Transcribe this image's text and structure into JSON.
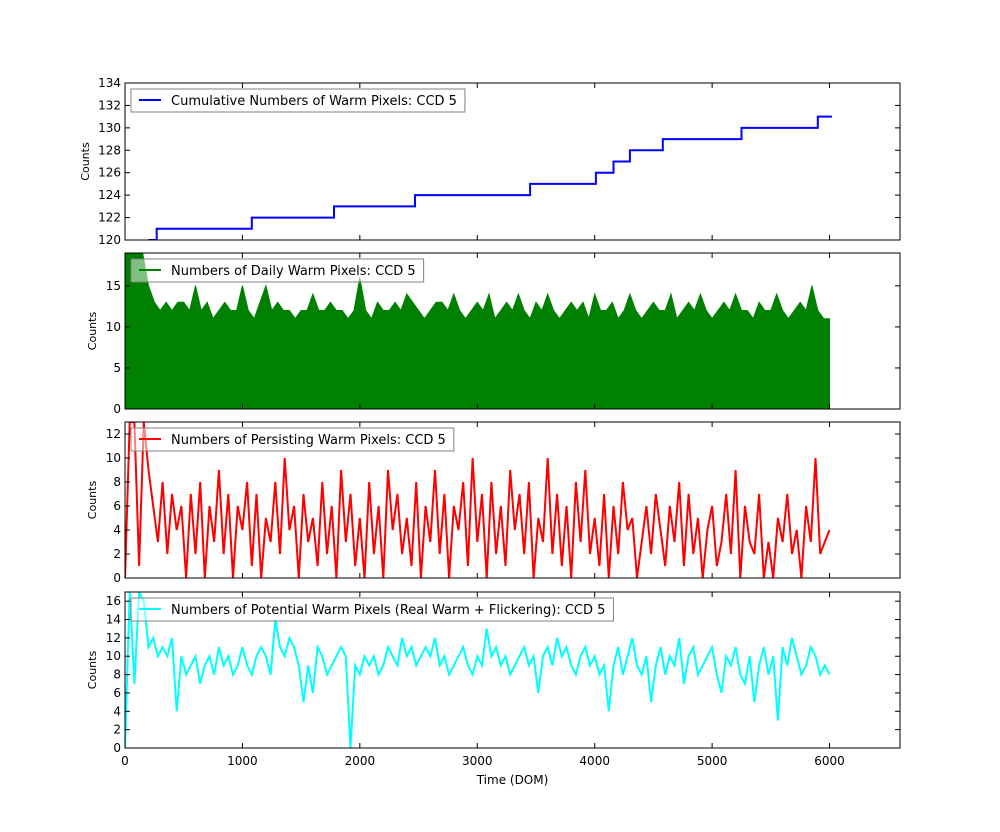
{
  "chart_data": [
    {
      "type": "line",
      "legend": "Cumulative Numbers of Warm Pixels: CCD 5",
      "legend_placement": "top-left",
      "ylabel": "Counts",
      "xlim": [
        0,
        6600
      ],
      "ylim": [
        120,
        134
      ],
      "yticks": [
        120,
        122,
        124,
        126,
        128,
        130,
        132,
        134
      ],
      "color": "#0000ff",
      "drawstyle": "steps",
      "points": [
        [
          200,
          120
        ],
        [
          270,
          121
        ],
        [
          1080,
          122
        ],
        [
          1780,
          123
        ],
        [
          2470,
          124
        ],
        [
          3450,
          125
        ],
        [
          4010,
          126
        ],
        [
          4160,
          127
        ],
        [
          4300,
          128
        ],
        [
          4580,
          129
        ],
        [
          5250,
          130
        ],
        [
          5900,
          131
        ],
        [
          6020,
          131
        ]
      ]
    },
    {
      "type": "area",
      "legend": "Numbers of Daily Warm Pixels: CCD 5",
      "legend_placement": "top-left",
      "ylabel": "Counts",
      "xlim": [
        0,
        6600
      ],
      "ylim": [
        0,
        19
      ],
      "yticks": [
        0,
        5,
        10,
        15
      ],
      "color": "#008000",
      "x_range": [
        0,
        6000
      ],
      "values": [
        19,
        19,
        19,
        19,
        15,
        13,
        12,
        13,
        12,
        13,
        13,
        12,
        15,
        12,
        13,
        11,
        12,
        13,
        12,
        12,
        15,
        12,
        11,
        13,
        15,
        12,
        13,
        12,
        12,
        11,
        12,
        12,
        14,
        12,
        12,
        13,
        12,
        12,
        11,
        12,
        16,
        12,
        11,
        13,
        12,
        12,
        13,
        12,
        14,
        13,
        12,
        11,
        12,
        13,
        13,
        12,
        14,
        12,
        11,
        12,
        13,
        12,
        14,
        11,
        12,
        13,
        12,
        14,
        12,
        11,
        13,
        12,
        14,
        12,
        11,
        12,
        13,
        12,
        13,
        11,
        14,
        12,
        12,
        13,
        11,
        12,
        14,
        12,
        11,
        12,
        13,
        12,
        12,
        14,
        11,
        12,
        13,
        12,
        14,
        12,
        11,
        12,
        13,
        12,
        14,
        12,
        12,
        11,
        13,
        12,
        12,
        14,
        12,
        11,
        12,
        13,
        12,
        15,
        12,
        11,
        11
      ]
    },
    {
      "type": "line",
      "legend": "Numbers of Persisting Warm Pixels: CCD 5",
      "legend_placement": "top-left",
      "ylabel": "Counts",
      "xlim": [
        0,
        6600
      ],
      "ylim": [
        0,
        13
      ],
      "yticks": [
        0,
        2,
        4,
        6,
        8,
        10,
        12
      ],
      "color": "#ff0000",
      "x_range": [
        0,
        6000
      ],
      "values": [
        0,
        13,
        13,
        1,
        13,
        9,
        6,
        3,
        8,
        2,
        7,
        4,
        6,
        0,
        7,
        2,
        8,
        0,
        6,
        3,
        9,
        2,
        7,
        0,
        6,
        4,
        8,
        1,
        7,
        0,
        5,
        3,
        8,
        2,
        10,
        4,
        6,
        0,
        7,
        3,
        5,
        1,
        8,
        2,
        6,
        0,
        9,
        3,
        7,
        1,
        5,
        0,
        8,
        2,
        6,
        0,
        9,
        4,
        7,
        2,
        5,
        1,
        8,
        0,
        6,
        3,
        9,
        2,
        7,
        0,
        6,
        4,
        8,
        1,
        10,
        3,
        7,
        0,
        8,
        2,
        6,
        1,
        9,
        4,
        7,
        2,
        8,
        0,
        5,
        3,
        10,
        2,
        7,
        1,
        6,
        0,
        8,
        3,
        9,
        2,
        5,
        1,
        7,
        0,
        6,
        2,
        8,
        4,
        5,
        0,
        3,
        6,
        2,
        7,
        4,
        1,
        6,
        3,
        8,
        1,
        7,
        2,
        5,
        0,
        4,
        6,
        1,
        3,
        7,
        2,
        9,
        0,
        6,
        3,
        2,
        7,
        0,
        3,
        0,
        5,
        3,
        7,
        2,
        4,
        0,
        6,
        3,
        10,
        2,
        3,
        4
      ]
    },
    {
      "type": "line",
      "legend": "Numbers of Potential Warm Pixels (Real Warm + Flickering): CCD 5",
      "legend_placement": "top-left",
      "ylabel": "Counts",
      "xlabel": "Time (DOM)",
      "xlim": [
        0,
        6600
      ],
      "xticks": [
        0,
        1000,
        2000,
        3000,
        4000,
        5000,
        6000
      ],
      "ylim": [
        0,
        17
      ],
      "yticks": [
        0,
        2,
        4,
        6,
        8,
        10,
        12,
        14,
        16
      ],
      "color": "#00ffff",
      "x_range": [
        0,
        6000
      ],
      "values": [
        0,
        17,
        7,
        17,
        16,
        11,
        12,
        10,
        11,
        10,
        12,
        4,
        10,
        8,
        9,
        10,
        7,
        9,
        10,
        8,
        11,
        9,
        10,
        8,
        9,
        11,
        9,
        8,
        10,
        11,
        10,
        8,
        14,
        11,
        10,
        12,
        11,
        9,
        5,
        9,
        6,
        11,
        10,
        8,
        9,
        10,
        11,
        10,
        0,
        9,
        8,
        10,
        9,
        10,
        8,
        9,
        11,
        10,
        9,
        12,
        10,
        11,
        9,
        10,
        11,
        10,
        12,
        9,
        10,
        8,
        9,
        10,
        11,
        9,
        8,
        10,
        9,
        13,
        10,
        11,
        9,
        10,
        8,
        9,
        10,
        11,
        9,
        10,
        6,
        10,
        11,
        9,
        12,
        10,
        11,
        9,
        8,
        10,
        11,
        9,
        10,
        8,
        9,
        4,
        9,
        11,
        8,
        10,
        12,
        9,
        8,
        10,
        5,
        9,
        11,
        8,
        10,
        9,
        12,
        7,
        10,
        11,
        8,
        9,
        10,
        11,
        8,
        6,
        10,
        9,
        11,
        8,
        7,
        10,
        5,
        9,
        11,
        8,
        10,
        3,
        11,
        9,
        12,
        10,
        8,
        9,
        11,
        10,
        8,
        9,
        8
      ]
    }
  ]
}
